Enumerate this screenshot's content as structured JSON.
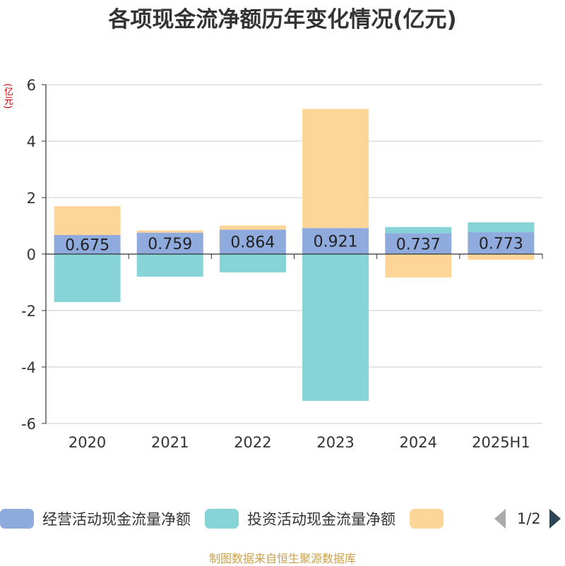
{
  "chart_data": {
    "type": "bar",
    "title": "各项现金流净额历年变化情况(亿元)",
    "ylabel": "(亿元)",
    "categories": [
      "2020",
      "2021",
      "2022",
      "2023",
      "2024",
      "2025H1"
    ],
    "ylim": [
      -6,
      6
    ],
    "yticks": [
      -6,
      -4,
      -2,
      0,
      2,
      4,
      6
    ],
    "grid": true,
    "stacked": true,
    "series": [
      {
        "name": "经营活动现金流量净额",
        "color": "#8faadc",
        "values": [
          0.675,
          0.759,
          0.864,
          0.921,
          0.737,
          0.773
        ],
        "show_labels": true
      },
      {
        "name": "投资活动现金流量净额",
        "color": "#86d4d8",
        "values": [
          -1.7,
          -0.8,
          -0.65,
          -5.2,
          0.22,
          0.35
        ],
        "show_labels": false
      },
      {
        "name": "",
        "color": "#fdd598",
        "values": [
          1.02,
          0.08,
          0.15,
          4.22,
          -0.83,
          -0.2
        ],
        "show_labels": false
      }
    ],
    "legend_position": "bottom"
  },
  "legend": {
    "page": "1/2"
  },
  "footer": {
    "source": "制图数据来自恒生聚源数据库"
  }
}
